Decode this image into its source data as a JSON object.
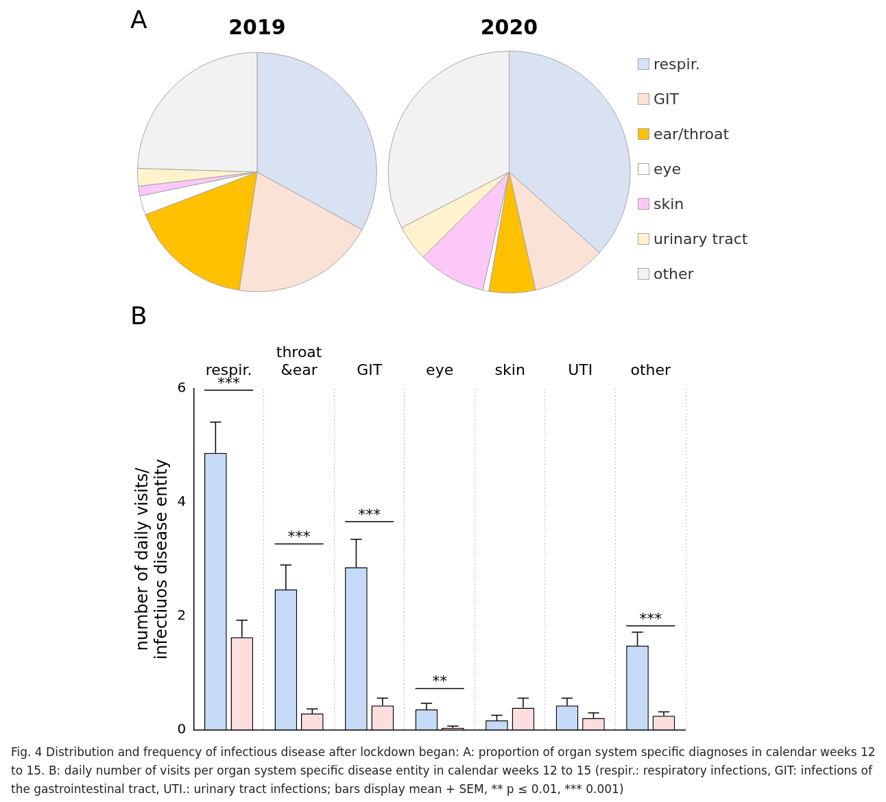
{
  "chart_data": [
    {
      "type": "pie",
      "title": "2019",
      "annotations": [
        "A"
      ],
      "categories": [
        null,
        null,
        null,
        null,
        null,
        null,
        null
      ],
      "values": [
        33,
        19.4,
        16.8,
        2.6,
        1.3,
        2.4,
        24.5
      ],
      "colors": [
        "#d9e2f2",
        "#fae3d6",
        "#ffc000",
        "#ffffff",
        "#fbc8f8",
        "#fff2cc",
        "#f2f2f2"
      ]
    },
    {
      "type": "pie",
      "title": "2020",
      "legend": "right",
      "categories": [
        "respir.",
        "GIT",
        "ear/throat",
        "eye",
        "skin",
        "urinary tract",
        "other"
      ],
      "values": [
        36.6,
        9.9,
        6.2,
        0.8,
        9.1,
        4.8,
        32.6
      ],
      "colors": [
        "#d9e2f2",
        "#fae3d6",
        "#ffc000",
        "#ffffff",
        "#fbc8f8",
        "#fff2cc",
        "#f2f2f2"
      ]
    },
    {
      "type": "bar",
      "ylabel": "number of daily visits/\ninfectiuos disease entity",
      "categories": [
        "respir.",
        "throat\n&ear",
        "GIT",
        "eye",
        "skin",
        "UTI",
        "other"
      ],
      "series": [
        {
          "color": "#c5daf6",
          "values": [
            4.87,
            2.47,
            2.86,
            0.36,
            0.17,
            0.43,
            1.48
          ],
          "errors": [
            [
              4.87,
              5.41
            ],
            [
              2.47,
              2.9
            ],
            [
              2.86,
              3.35
            ],
            [
              0.36,
              0.47
            ],
            [
              0.17,
              0.26
            ],
            [
              0.43,
              0.56
            ],
            [
              1.48,
              1.72
            ]
          ]
        },
        {
          "color": "#fcdede",
          "values": [
            1.63,
            0.29,
            0.43,
            0.04,
            0.39,
            0.21,
            0.25
          ],
          "errors": [
            [
              1.63,
              1.93
            ],
            [
              0.29,
              0.37
            ],
            [
              0.43,
              0.56
            ],
            [
              0.04,
              0.07
            ],
            [
              0.39,
              0.56
            ],
            [
              0.21,
              0.3
            ],
            [
              0.25,
              0.32
            ]
          ]
        }
      ],
      "ylim": [
        0,
        6
      ],
      "yticks": [
        0,
        2,
        4,
        6
      ],
      "grid": "x",
      "annotations": [
        "B",
        "***",
        "***",
        "***",
        "**",
        "***",
        "Fig. 4 Distribution and frequency of infectious disease after lockdown began: A: proportion of organ system specific diagnoses in calendar weeks 12 to 15. B: daily number of visits per organ system specific disease entity in calendar weeks 12 to 15 (respir.: respiratory infections, GIT: infections of the gastrointestinal tract, UTI.: urinary tract infections; bars display mean + SEM, ** p ≤ 0.01, *** 0.001)"
      ]
    }
  ]
}
